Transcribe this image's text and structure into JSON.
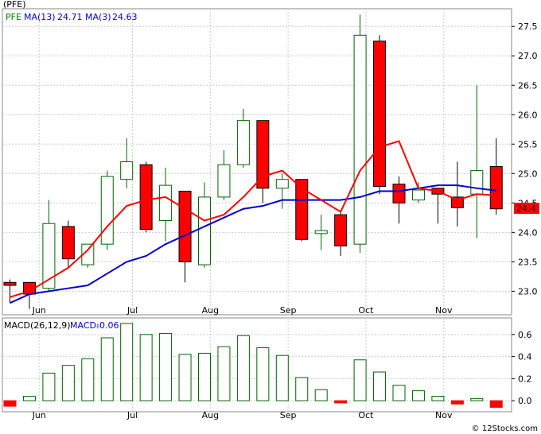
{
  "chart_data": [
    {
      "type": "candlestick",
      "title": "",
      "ticker": "(PFE)",
      "legend": [
        {
          "label": "PFE",
          "color": "#008000"
        },
        {
          "label": "MA(13)",
          "value": "24.71",
          "color": "#0000cc"
        },
        {
          "label": "MA(3)",
          "value": "24.63",
          "color": "#0000cc"
        }
      ],
      "ylim": [
        22.6,
        27.8
      ],
      "y_ticks": [
        "23.0",
        "23.5",
        "24.0",
        "24.5",
        "25.0",
        "25.5",
        "26.0",
        "26.5",
        "27.0",
        "27.5"
      ],
      "last_price": "24.4",
      "months": [
        "Jun",
        "Jul",
        "Aug",
        "Sep",
        "Oct",
        "Nov"
      ],
      "month_positions": [
        1.5,
        6.3,
        10.3,
        14.3,
        18.3,
        22.3
      ],
      "candles": [
        {
          "o": 23.15,
          "h": 23.2,
          "l": 22.8,
          "c": 23.1
        },
        {
          "o": 23.15,
          "h": 23.15,
          "l": 22.7,
          "c": 22.95
        },
        {
          "o": 23.05,
          "h": 24.55,
          "l": 23.0,
          "c": 24.15
        },
        {
          "o": 24.1,
          "h": 24.2,
          "l": 23.4,
          "c": 23.55
        },
        {
          "o": 23.45,
          "h": 23.8,
          "l": 23.4,
          "c": 23.8
        },
        {
          "o": 23.8,
          "h": 25.05,
          "l": 23.7,
          "c": 24.95
        },
        {
          "o": 24.9,
          "h": 25.6,
          "l": 24.75,
          "c": 25.2
        },
        {
          "o": 25.15,
          "h": 25.2,
          "l": 24.0,
          "c": 24.05
        },
        {
          "o": 24.2,
          "h": 25.1,
          "l": 23.85,
          "c": 24.8
        },
        {
          "o": 24.7,
          "h": 24.7,
          "l": 23.15,
          "c": 23.5
        },
        {
          "o": 23.45,
          "h": 24.85,
          "l": 23.4,
          "c": 24.6
        },
        {
          "o": 24.6,
          "h": 25.4,
          "l": 24.55,
          "c": 25.15
        },
        {
          "o": 25.15,
          "h": 26.1,
          "l": 25.1,
          "c": 25.9
        },
        {
          "o": 25.9,
          "h": 25.9,
          "l": 24.5,
          "c": 24.75
        },
        {
          "o": 24.75,
          "h": 25.0,
          "l": 24.4,
          "c": 24.9
        },
        {
          "o": 24.9,
          "h": 24.9,
          "l": 23.85,
          "c": 23.88
        },
        {
          "o": 23.98,
          "h": 24.3,
          "l": 23.7,
          "c": 24.03
        },
        {
          "o": 24.3,
          "h": 24.35,
          "l": 23.6,
          "c": 23.77
        },
        {
          "o": 23.8,
          "h": 27.7,
          "l": 23.65,
          "c": 27.35
        },
        {
          "o": 27.25,
          "h": 27.35,
          "l": 24.65,
          "c": 24.78
        },
        {
          "o": 24.82,
          "h": 24.95,
          "l": 24.15,
          "c": 24.5
        },
        {
          "o": 24.55,
          "h": 24.85,
          "l": 24.5,
          "c": 24.72
        },
        {
          "o": 24.75,
          "h": 24.75,
          "l": 24.15,
          "c": 24.65
        },
        {
          "o": 24.6,
          "h": 25.2,
          "l": 24.1,
          "c": 24.42
        },
        {
          "o": 24.65,
          "h": 26.5,
          "l": 23.9,
          "c": 25.05
        },
        {
          "o": 25.12,
          "h": 25.6,
          "l": 24.3,
          "c": 24.4
        }
      ],
      "series": [
        {
          "name": "MA(13)",
          "color": "#0000cc",
          "start": 0,
          "values": [
            22.8,
            22.95,
            23.0,
            23.05,
            23.1,
            23.3,
            23.5,
            23.6,
            23.8,
            23.95,
            24.1,
            24.25,
            24.4,
            24.45,
            24.55,
            24.55,
            24.55,
            24.55,
            24.6,
            24.7,
            24.7,
            24.75,
            24.8,
            24.8,
            24.75,
            24.71
          ]
        },
        {
          "name": "MA(3)",
          "color": "#0000cc",
          "start": 0,
          "values": [
            22.9,
            23.0,
            23.2,
            23.4,
            23.7,
            24.1,
            24.45,
            24.55,
            24.6,
            24.4,
            24.2,
            24.3,
            24.6,
            24.95,
            25.05,
            24.75,
            24.55,
            24.35,
            25.05,
            25.45,
            25.55,
            24.75,
            24.7,
            24.55,
            24.65,
            24.63
          ]
        }
      ]
    },
    {
      "type": "bar",
      "title": "",
      "legend": [
        {
          "label": "MACD(26,12,9)",
          "color": "#000000"
        },
        {
          "label": "MACD:",
          "value": "-0.06",
          "color": "#0000cc"
        }
      ],
      "ylim": [
        -0.1,
        0.75
      ],
      "y_ticks": [
        "0.0",
        "0.2",
        "0.4",
        "0.6"
      ],
      "values": [
        -0.05,
        0.04,
        0.25,
        0.32,
        0.38,
        0.57,
        0.7,
        0.6,
        0.61,
        0.42,
        0.43,
        0.49,
        0.59,
        0.48,
        0.41,
        0.21,
        0.1,
        -0.02,
        0.37,
        0.26,
        0.14,
        0.09,
        0.04,
        -0.03,
        0.02,
        -0.06
      ],
      "colors": {
        "positive": "#006400",
        "negative": "#ff0000"
      }
    }
  ],
  "credit": "© 12Stocks.com"
}
